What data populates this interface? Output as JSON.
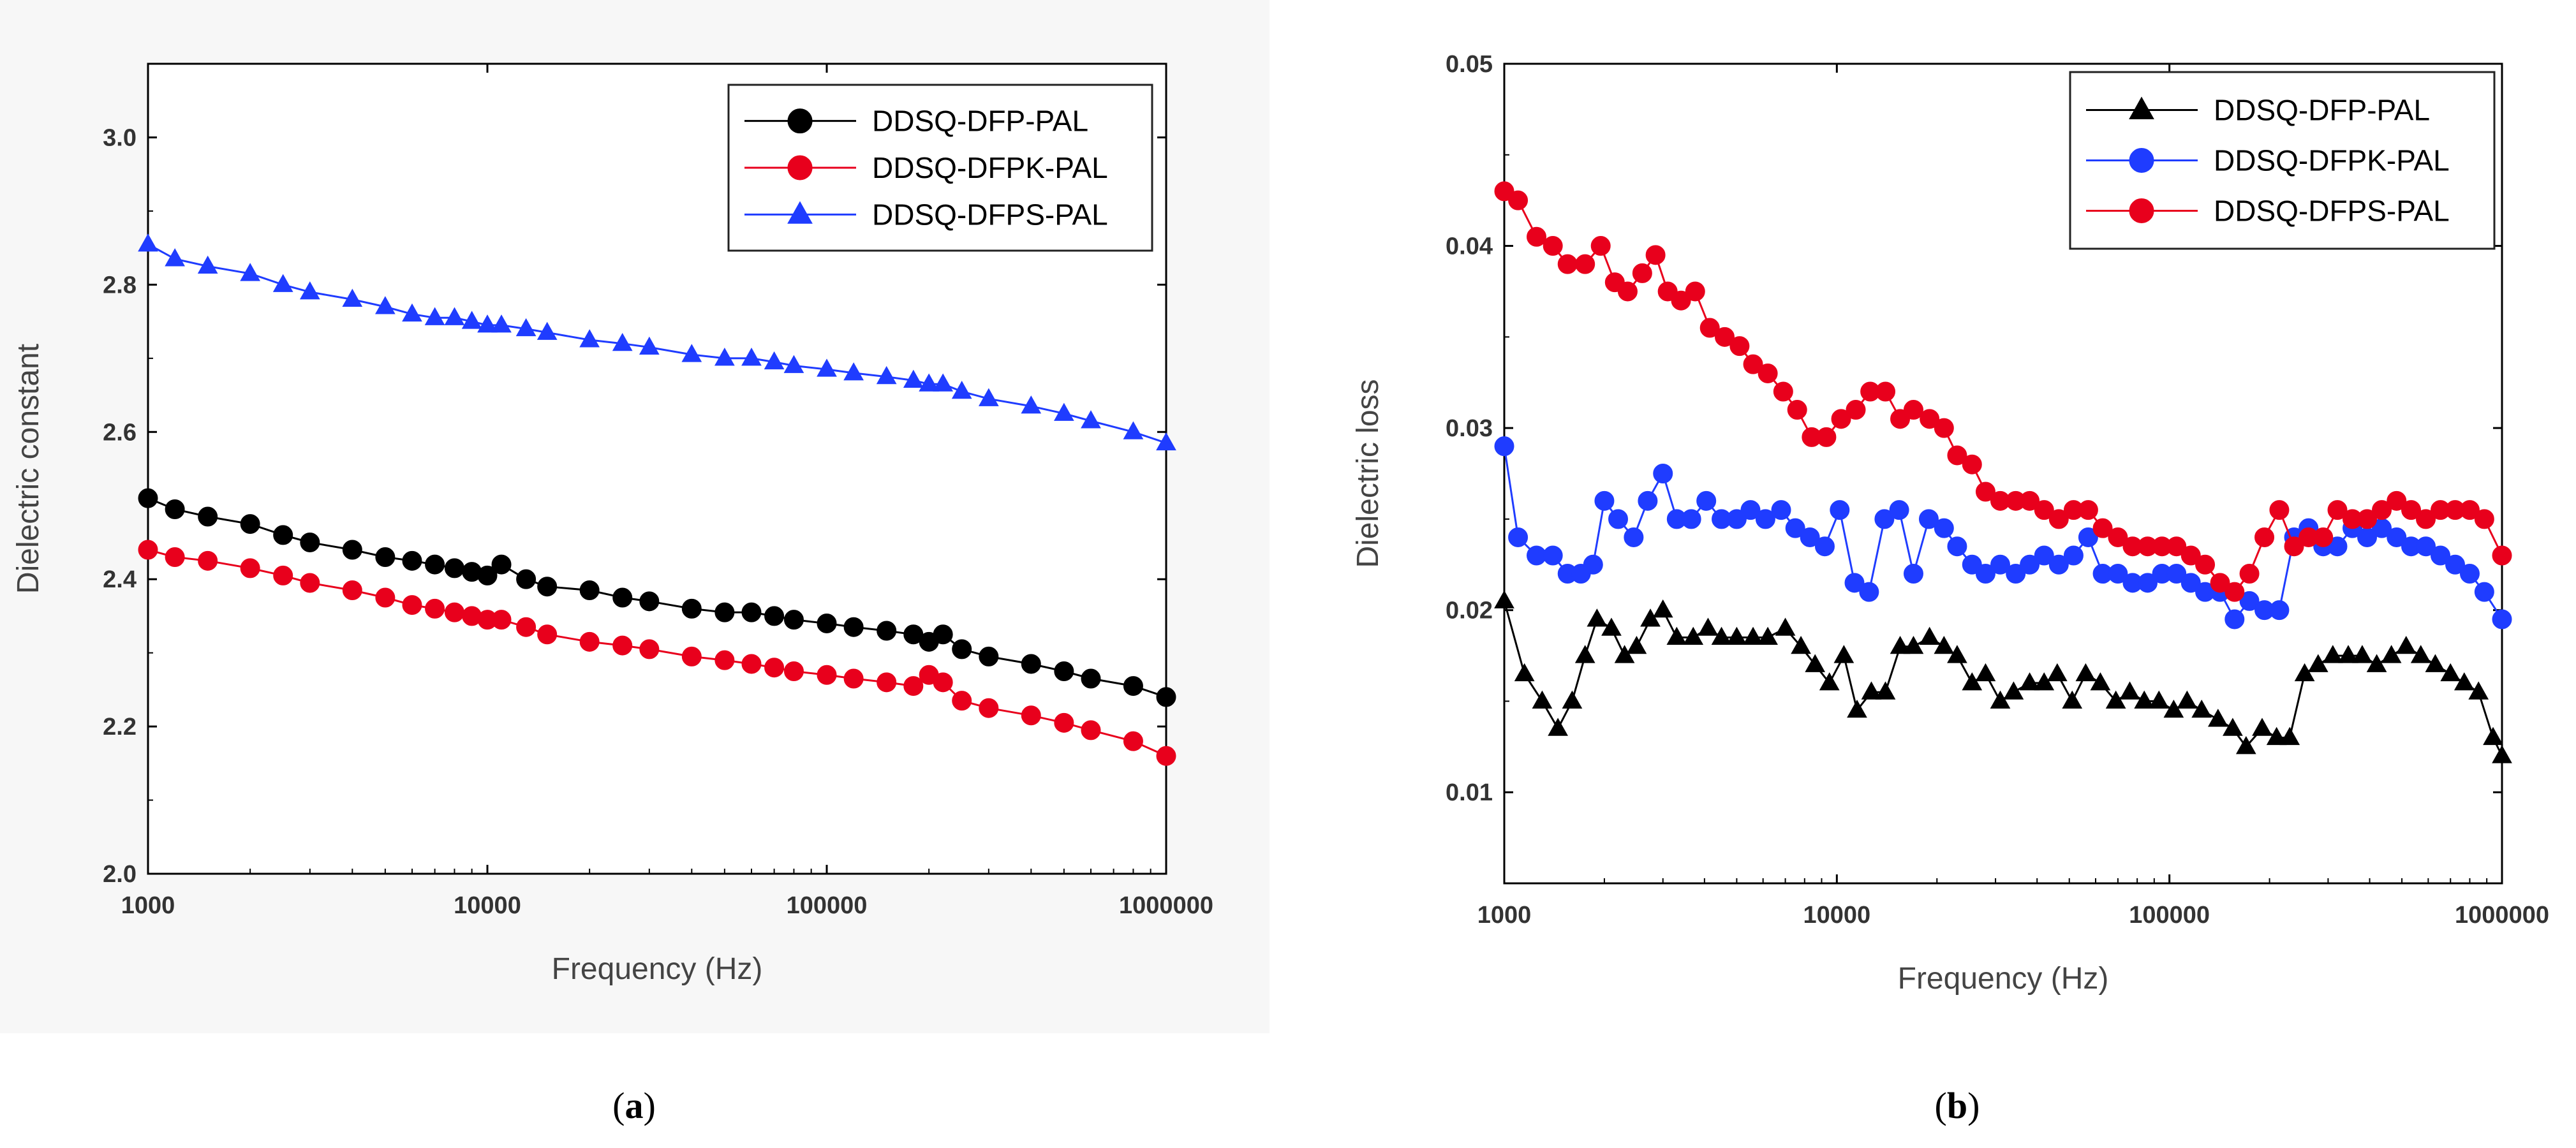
{
  "captions": {
    "a_open": "(",
    "a_letter": "a",
    "a_close": ")",
    "b_open": "(",
    "b_letter": "b",
    "b_close": ")"
  },
  "chart_data": [
    {
      "id": "a",
      "type": "line",
      "xscale": "log",
      "xlim": [
        1000,
        1000000
      ],
      "ylim": [
        2.0,
        3.1
      ],
      "xlabel": "Frequency (Hz)",
      "ylabel": "Dielectric constant",
      "xticks": [
        "1000",
        "10000",
        "100000",
        "1000000"
      ],
      "yticks": [
        "2.0",
        "2.2",
        "2.4",
        "2.6",
        "2.8",
        "3.0"
      ],
      "legend_position": "top-right",
      "series": [
        {
          "name": "DDSQ-DFP-PAL",
          "color": "#000000",
          "marker": "circle",
          "x": [
            1000,
            1200,
            1500,
            2000,
            2500,
            3000,
            4000,
            5000,
            6000,
            7000,
            8000,
            9000,
            10000,
            11000,
            13000,
            15000,
            20000,
            25000,
            30000,
            40000,
            50000,
            60000,
            70000,
            80000,
            100000,
            120000,
            150000,
            180000,
            200000,
            220000,
            250000,
            300000,
            400000,
            500000,
            600000,
            800000,
            1000000
          ],
          "y": [
            2.51,
            2.495,
            2.485,
            2.475,
            2.46,
            2.45,
            2.44,
            2.43,
            2.425,
            2.42,
            2.415,
            2.41,
            2.405,
            2.42,
            2.4,
            2.39,
            2.385,
            2.375,
            2.37,
            2.36,
            2.355,
            2.355,
            2.35,
            2.345,
            2.34,
            2.335,
            2.33,
            2.325,
            2.315,
            2.325,
            2.305,
            2.295,
            2.285,
            2.275,
            2.265,
            2.255,
            2.24
          ]
        },
        {
          "name": "DDSQ-DFPK-PAL",
          "color": "#e8001c",
          "marker": "circle",
          "x": [
            1000,
            1200,
            1500,
            2000,
            2500,
            3000,
            4000,
            5000,
            6000,
            7000,
            8000,
            9000,
            10000,
            11000,
            13000,
            15000,
            20000,
            25000,
            30000,
            40000,
            50000,
            60000,
            70000,
            80000,
            100000,
            120000,
            150000,
            180000,
            200000,
            220000,
            250000,
            300000,
            400000,
            500000,
            600000,
            800000,
            1000000
          ],
          "y": [
            2.44,
            2.43,
            2.425,
            2.415,
            2.405,
            2.395,
            2.385,
            2.375,
            2.365,
            2.36,
            2.355,
            2.35,
            2.345,
            2.345,
            2.335,
            2.325,
            2.315,
            2.31,
            2.305,
            2.295,
            2.29,
            2.285,
            2.28,
            2.275,
            2.27,
            2.265,
            2.26,
            2.255,
            2.27,
            2.26,
            2.235,
            2.225,
            2.215,
            2.205,
            2.195,
            2.18,
            2.16
          ]
        },
        {
          "name": "DDSQ-DFPS-PAL",
          "color": "#1f3cff",
          "marker": "triangle",
          "x": [
            1000,
            1200,
            1500,
            2000,
            2500,
            3000,
            4000,
            5000,
            6000,
            7000,
            8000,
            9000,
            10000,
            11000,
            13000,
            15000,
            20000,
            25000,
            30000,
            40000,
            50000,
            60000,
            70000,
            80000,
            100000,
            120000,
            150000,
            180000,
            200000,
            220000,
            250000,
            300000,
            400000,
            500000,
            600000,
            800000,
            1000000
          ],
          "y": [
            2.855,
            2.835,
            2.825,
            2.815,
            2.8,
            2.79,
            2.78,
            2.77,
            2.76,
            2.755,
            2.755,
            2.75,
            2.745,
            2.745,
            2.74,
            2.735,
            2.725,
            2.72,
            2.715,
            2.705,
            2.7,
            2.7,
            2.695,
            2.69,
            2.685,
            2.68,
            2.675,
            2.67,
            2.665,
            2.665,
            2.655,
            2.645,
            2.635,
            2.625,
            2.615,
            2.6,
            2.585
          ]
        }
      ]
    },
    {
      "id": "b",
      "type": "line",
      "xscale": "log",
      "xlim": [
        1000,
        1000000
      ],
      "ylim": [
        0.005,
        0.05
      ],
      "xlabel": "Frequency (Hz)",
      "ylabel": "Dielectric loss",
      "xticks": [
        "1000",
        "10000",
        "100000",
        "1000000"
      ],
      "yticks": [
        "0.01",
        "0.02",
        "0.03",
        "0.04",
        "0.05"
      ],
      "legend_position": "top-right",
      "series": [
        {
          "name": "DDSQ-DFP-PAL",
          "color": "#000000",
          "marker": "triangle",
          "x": [
            1000,
            1150,
            1300,
            1450,
            1600,
            1750,
            1900,
            2100,
            2300,
            2500,
            2750,
            3000,
            3300,
            3700,
            4100,
            4500,
            5000,
            5600,
            6200,
            7000,
            7800,
            8600,
            9500,
            10500,
            11500,
            12700,
            14000,
            15500,
            17000,
            19000,
            21000,
            23000,
            25500,
            28000,
            31000,
            34000,
            38000,
            42000,
            46000,
            51000,
            56000,
            62000,
            69000,
            76000,
            84000,
            93000,
            103000,
            113000,
            125000,
            140000,
            155000,
            170000,
            190000,
            210000,
            230000,
            255000,
            280000,
            310000,
            345000,
            380000,
            420000,
            465000,
            515000,
            570000,
            630000,
            700000,
            770000,
            850000,
            940000,
            1000000
          ],
          "y": [
            0.0205,
            0.0165,
            0.015,
            0.0135,
            0.015,
            0.0175,
            0.0195,
            0.019,
            0.0175,
            0.018,
            0.0195,
            0.02,
            0.0185,
            0.0185,
            0.019,
            0.0185,
            0.0185,
            0.0185,
            0.0185,
            0.019,
            0.018,
            0.017,
            0.016,
            0.0175,
            0.0145,
            0.0155,
            0.0155,
            0.018,
            0.018,
            0.0185,
            0.018,
            0.0175,
            0.016,
            0.0165,
            0.015,
            0.0155,
            0.016,
            0.016,
            0.0165,
            0.015,
            0.0165,
            0.016,
            0.015,
            0.0155,
            0.015,
            0.015,
            0.0145,
            0.015,
            0.0145,
            0.014,
            0.0135,
            0.0125,
            0.0135,
            0.013,
            0.013,
            0.0165,
            0.017,
            0.0175,
            0.0175,
            0.0175,
            0.017,
            0.0175,
            0.018,
            0.0175,
            0.017,
            0.0165,
            0.016,
            0.0155,
            0.013,
            0.012
          ]
        },
        {
          "name": "DDSQ-DFPK-PAL",
          "color": "#1f3cff",
          "marker": "circle",
          "x": [
            1000,
            1100,
            1250,
            1400,
            1550,
            1700,
            1850,
            2000,
            2200,
            2450,
            2700,
            3000,
            3300,
            3650,
            4050,
            4500,
            5000,
            5500,
            6100,
            6800,
            7500,
            8300,
            9200,
            10200,
            11300,
            12500,
            13900,
            15400,
            17000,
            18900,
            21000,
            23000,
            25500,
            28000,
            31000,
            34500,
            38000,
            42000,
            46500,
            51500,
            57000,
            63000,
            70000,
            77500,
            86000,
            95000,
            105000,
            116000,
            128000,
            142000,
            157000,
            174000,
            193000,
            214000,
            237000,
            262000,
            290000,
            320000,
            355000,
            393000,
            435000,
            482000,
            533000,
            590000,
            653000,
            723000,
            800000,
            885000,
            1000000
          ],
          "y": [
            0.029,
            0.024,
            0.023,
            0.023,
            0.022,
            0.022,
            0.0225,
            0.026,
            0.025,
            0.024,
            0.026,
            0.0275,
            0.025,
            0.025,
            0.026,
            0.025,
            0.025,
            0.0255,
            0.025,
            0.0255,
            0.0245,
            0.024,
            0.0235,
            0.0255,
            0.0215,
            0.021,
            0.025,
            0.0255,
            0.022,
            0.025,
            0.0245,
            0.0235,
            0.0225,
            0.022,
            0.0225,
            0.022,
            0.0225,
            0.023,
            0.0225,
            0.023,
            0.024,
            0.022,
            0.022,
            0.0215,
            0.0215,
            0.022,
            0.022,
            0.0215,
            0.021,
            0.021,
            0.0195,
            0.0205,
            0.02,
            0.02,
            0.024,
            0.0245,
            0.0235,
            0.0235,
            0.0245,
            0.024,
            0.0245,
            0.024,
            0.0235,
            0.0235,
            0.023,
            0.0225,
            0.022,
            0.021,
            0.0195
          ]
        },
        {
          "name": "DDSQ-DFPS-PAL",
          "color": "#e8001c",
          "marker": "circle",
          "x": [
            1000,
            1100,
            1250,
            1400,
            1550,
            1750,
            1950,
            2150,
            2350,
            2600,
            2850,
            3100,
            3400,
            3750,
            4150,
            4600,
            5100,
            5600,
            6200,
            6900,
            7600,
            8400,
            9300,
            10300,
            11400,
            12600,
            14000,
            15500,
            17000,
            19000,
            21000,
            23000,
            25500,
            28000,
            31000,
            34500,
            38000,
            42000,
            46500,
            51500,
            57000,
            63000,
            70000,
            77500,
            86000,
            95000,
            105000,
            116000,
            128000,
            142000,
            157000,
            174000,
            193000,
            214000,
            237000,
            262000,
            290000,
            320000,
            355000,
            393000,
            435000,
            482000,
            533000,
            590000,
            653000,
            723000,
            800000,
            885000,
            1000000
          ],
          "y": [
            0.043,
            0.0425,
            0.0405,
            0.04,
            0.039,
            0.039,
            0.04,
            0.038,
            0.0375,
            0.0385,
            0.0395,
            0.0375,
            0.037,
            0.0375,
            0.0355,
            0.035,
            0.0345,
            0.0335,
            0.033,
            0.032,
            0.031,
            0.0295,
            0.0295,
            0.0305,
            0.031,
            0.032,
            0.032,
            0.0305,
            0.031,
            0.0305,
            0.03,
            0.0285,
            0.028,
            0.0265,
            0.026,
            0.026,
            0.026,
            0.0255,
            0.025,
            0.0255,
            0.0255,
            0.0245,
            0.024,
            0.0235,
            0.0235,
            0.0235,
            0.0235,
            0.023,
            0.0225,
            0.0215,
            0.021,
            0.022,
            0.024,
            0.0255,
            0.0235,
            0.024,
            0.024,
            0.0255,
            0.025,
            0.025,
            0.0255,
            0.026,
            0.0255,
            0.025,
            0.0255,
            0.0255,
            0.0255,
            0.025,
            0.023
          ]
        }
      ]
    }
  ]
}
